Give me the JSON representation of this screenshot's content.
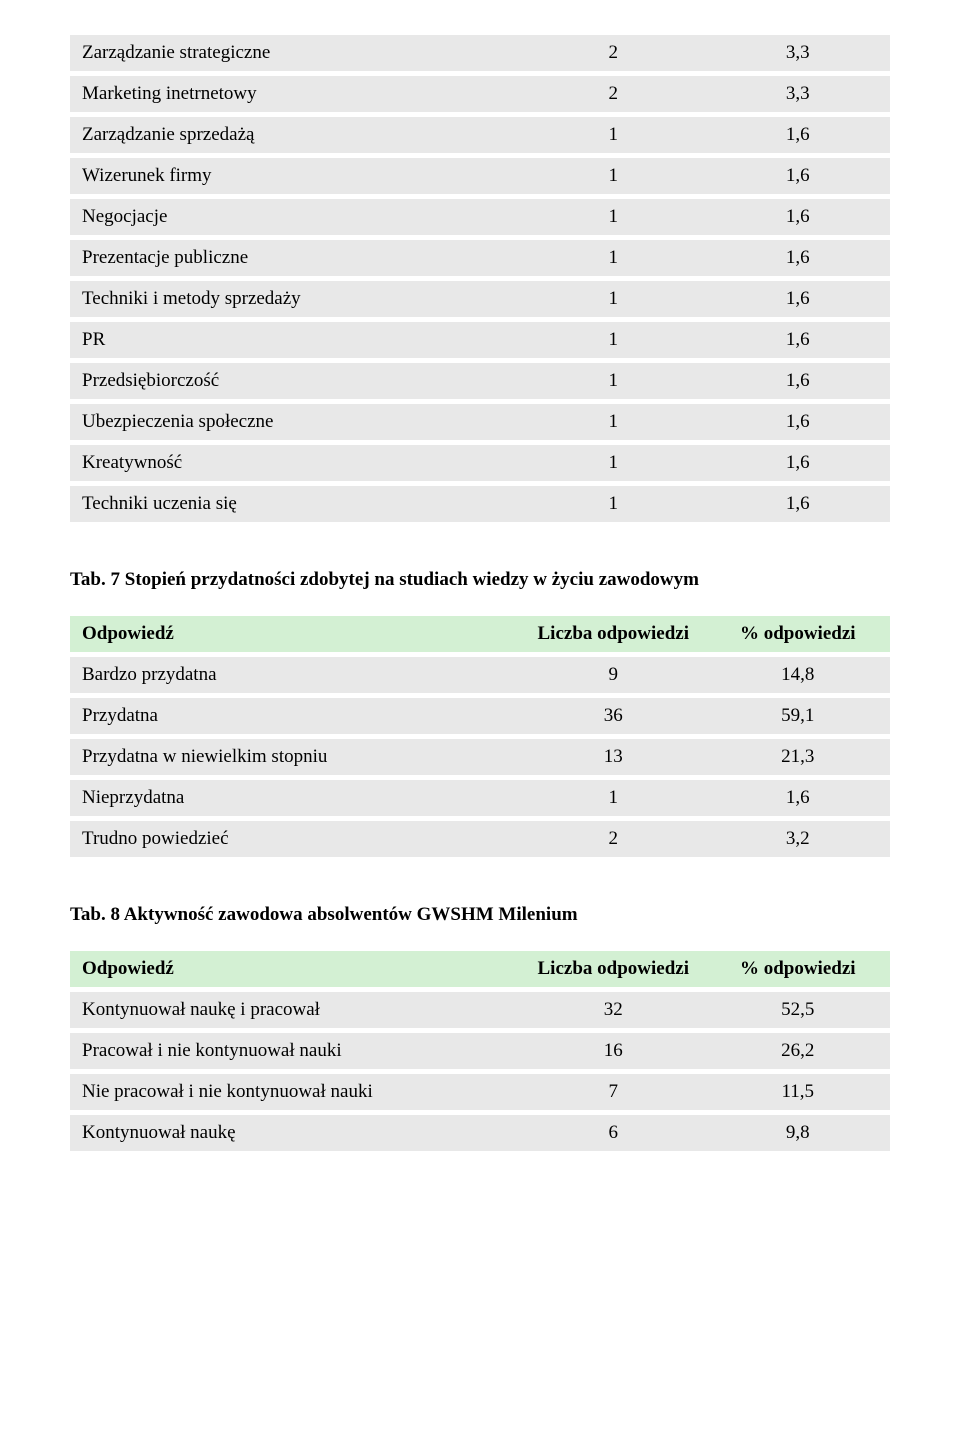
{
  "colors": {
    "row_bg": "#e8e8e8",
    "header_bg": "#d3f0d3",
    "text": "#000000",
    "page_bg": "#ffffff"
  },
  "typography": {
    "font_family": "Times New Roman",
    "body_fontsize_pt": 14,
    "title_weight": "bold"
  },
  "table1": {
    "rows": [
      {
        "label": "Zarządzanie strategiczne",
        "c1": "2",
        "c2": "3,3"
      },
      {
        "label": "Marketing inetrnetowy",
        "c1": "2",
        "c2": "3,3"
      },
      {
        "label": "Zarządzanie sprzedażą",
        "c1": "1",
        "c2": "1,6"
      },
      {
        "label": "Wizerunek firmy",
        "c1": "1",
        "c2": "1,6"
      },
      {
        "label": "Negocjacje",
        "c1": "1",
        "c2": "1,6"
      },
      {
        "label": "Prezentacje publiczne",
        "c1": "1",
        "c2": "1,6"
      },
      {
        "label": "Techniki i metody sprzedaży",
        "c1": "1",
        "c2": "1,6"
      },
      {
        "label": "PR",
        "c1": "1",
        "c2": "1,6"
      },
      {
        "label": "Przedsiębiorczość",
        "c1": "1",
        "c2": "1,6"
      },
      {
        "label": "Ubezpieczenia społeczne",
        "c1": "1",
        "c2": "1,6"
      },
      {
        "label": "Kreatywność",
        "c1": "1",
        "c2": "1,6"
      },
      {
        "label": "Techniki uczenia się",
        "c1": "1",
        "c2": "1,6"
      }
    ]
  },
  "section2": {
    "title": "Tab. 7 Stopień przydatności zdobytej na studiach wiedzy w życiu zawodowym",
    "header": {
      "label": "Odpowiedź",
      "c1": "Liczba odpowiedzi",
      "c2": "% odpowiedzi"
    },
    "rows": [
      {
        "label": "Bardzo przydatna",
        "c1": "9",
        "c2": "14,8"
      },
      {
        "label": "Przydatna",
        "c1": "36",
        "c2": "59,1"
      },
      {
        "label": "Przydatna w niewielkim stopniu",
        "c1": "13",
        "c2": "21,3"
      },
      {
        "label": "Nieprzydatna",
        "c1": "1",
        "c2": "1,6"
      },
      {
        "label": "Trudno powiedzieć",
        "c1": "2",
        "c2": "3,2"
      }
    ]
  },
  "section3": {
    "title": "Tab. 8 Aktywność zawodowa absolwentów GWSHM Milenium",
    "header": {
      "label": "Odpowiedź",
      "c1": "Liczba odpowiedzi",
      "c2": "% odpowiedzi"
    },
    "rows": [
      {
        "label": "Kontynuował naukę i pracował",
        "c1": "32",
        "c2": "52,5"
      },
      {
        "label": "Pracował i nie kontynuował nauki",
        "c1": "16",
        "c2": "26,2"
      },
      {
        "label": "Nie pracował i nie kontynuował nauki",
        "c1": "7",
        "c2": "11,5"
      },
      {
        "label": "Kontynuował naukę",
        "c1": "6",
        "c2": "9,8"
      }
    ]
  }
}
